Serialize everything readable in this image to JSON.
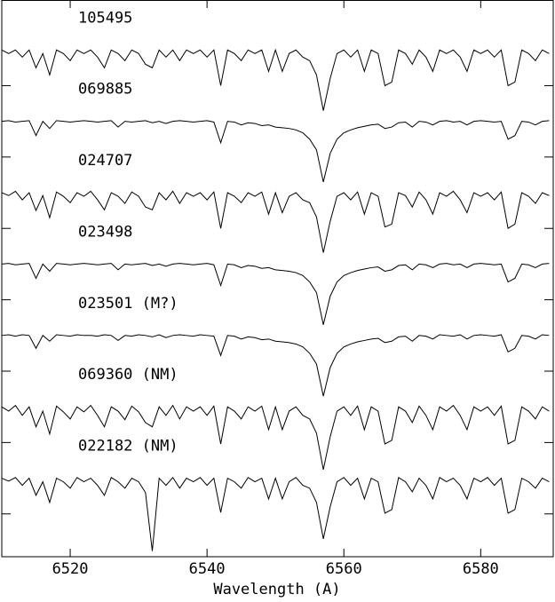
{
  "chart_data": {
    "type": "line",
    "x_label": "Wavelength (A)",
    "x": [
      6510,
      6511,
      6512,
      6513,
      6514,
      6515,
      6516,
      6517,
      6518,
      6519,
      6520,
      6521,
      6522,
      6523,
      6524,
      6525,
      6526,
      6527,
      6528,
      6529,
      6530,
      6531,
      6532,
      6533,
      6534,
      6535,
      6536,
      6537,
      6538,
      6539,
      6540,
      6541,
      6542,
      6543,
      6544,
      6545,
      6546,
      6547,
      6548,
      6549,
      6550,
      6551,
      6552,
      6553,
      6554,
      6555,
      6556,
      6557,
      6558,
      6559,
      6560,
      6561,
      6562,
      6563,
      6564,
      6565,
      6566,
      6567,
      6568,
      6569,
      6570,
      6571,
      6572,
      6573,
      6574,
      6575,
      6576,
      6577,
      6578,
      6579,
      6580,
      6581,
      6582,
      6583,
      6584,
      6585,
      6586,
      6587,
      6588,
      6589,
      6590
    ],
    "xlim": [
      6510,
      6590.6
    ],
    "xticks": [
      6520,
      6540,
      6560,
      6580
    ],
    "ylim": [
      -0.1,
      7.7
    ],
    "yticks": [
      0.5,
      1.5,
      2.5,
      3.5,
      4.5,
      5.5,
      6.5
    ],
    "series": [
      {
        "name": "105495",
        "color": "#000000",
        "values": [
          7,
          6.95,
          7,
          6.9,
          7,
          6.75,
          6.95,
          6.65,
          7,
          6.95,
          6.85,
          7,
          6.95,
          7,
          6.9,
          6.75,
          7,
          6.95,
          6.85,
          7,
          6.95,
          6.8,
          6.75,
          7,
          6.9,
          7,
          6.85,
          7,
          6.95,
          7,
          6.9,
          7,
          6.5,
          7,
          6.95,
          6.85,
          7,
          6.95,
          7,
          6.7,
          7,
          6.7,
          6.95,
          7,
          6.9,
          6.85,
          6.65,
          6.15,
          6.6,
          6.95,
          7,
          6.9,
          7,
          6.7,
          7,
          6.95,
          6.5,
          6.55,
          7,
          6.95,
          6.8,
          7,
          6.9,
          6.7,
          7,
          6.95,
          7,
          6.9,
          6.7,
          7,
          6.95,
          7,
          6.9,
          7,
          6.5,
          6.55,
          7,
          6.95,
          6.85,
          7,
          6.95
        ]
      },
      {
        "name": "069885",
        "color": "#000000",
        "values": [
          6,
          6.01,
          5.99,
          6,
          6.01,
          5.8,
          6,
          5.9,
          6.01,
          6,
          5.99,
          6,
          6.01,
          6,
          5.99,
          6,
          6.01,
          5.92,
          6,
          5.99,
          6,
          6.01,
          5.98,
          6,
          5.97,
          6,
          6.01,
          6,
          5.99,
          6,
          6.01,
          5.99,
          5.7,
          6,
          5.99,
          5.95,
          5.98,
          5.97,
          5.94,
          5.95,
          5.92,
          5.91,
          5.9,
          5.88,
          5.84,
          5.75,
          5.6,
          5.15,
          5.55,
          5.75,
          5.84,
          5.88,
          5.91,
          5.93,
          5.95,
          5.96,
          5.9,
          5.92,
          5.98,
          5.99,
          5.92,
          6,
          5.99,
          5.95,
          6,
          6.01,
          5.99,
          6,
          5.95,
          6,
          6.01,
          6,
          5.99,
          6,
          5.75,
          5.8,
          6,
          5.99,
          5.95,
          6,
          6.01
        ]
      },
      {
        "name": "024707",
        "color": "#000000",
        "values": [
          5,
          4.96,
          5.02,
          4.9,
          5,
          4.75,
          4.96,
          4.65,
          5.01,
          4.95,
          4.86,
          5,
          4.95,
          5.02,
          4.9,
          4.76,
          5,
          4.95,
          4.85,
          5.01,
          4.95,
          4.8,
          4.76,
          5,
          4.9,
          5.02,
          4.85,
          5,
          4.95,
          5,
          4.9,
          5.01,
          4.5,
          5,
          4.95,
          4.86,
          5,
          4.95,
          5.01,
          4.7,
          5,
          4.72,
          4.95,
          5,
          4.9,
          4.86,
          4.66,
          4.16,
          4.6,
          4.95,
          5,
          4.9,
          5.01,
          4.7,
          5,
          4.95,
          4.52,
          4.56,
          5,
          4.96,
          4.8,
          5.01,
          4.9,
          4.7,
          5,
          4.95,
          5.02,
          4.9,
          4.72,
          5,
          4.95,
          5,
          4.9,
          5.01,
          4.5,
          4.56,
          5,
          4.95,
          4.85,
          5,
          4.96
        ]
      },
      {
        "name": "023498",
        "color": "#000000",
        "values": [
          4,
          4.01,
          3.99,
          4,
          4.01,
          3.8,
          4,
          3.9,
          4.01,
          4,
          3.99,
          4,
          4.01,
          4,
          3.99,
          4,
          4.01,
          3.92,
          4,
          3.99,
          4,
          4.01,
          3.98,
          4,
          3.97,
          4,
          4.01,
          4,
          3.99,
          4,
          4.01,
          3.99,
          3.7,
          4,
          3.99,
          3.95,
          3.98,
          3.97,
          3.94,
          3.95,
          3.92,
          3.91,
          3.9,
          3.88,
          3.84,
          3.75,
          3.6,
          3.15,
          3.55,
          3.75,
          3.84,
          3.88,
          3.91,
          3.93,
          3.95,
          3.96,
          3.9,
          3.92,
          3.98,
          3.99,
          3.92,
          4,
          3.99,
          3.95,
          4,
          4.01,
          3.99,
          4,
          3.95,
          4,
          4.01,
          4,
          3.99,
          4,
          3.75,
          3.8,
          4,
          3.99,
          3.95,
          4,
          4.01
        ]
      },
      {
        "name": "023501 (M?)",
        "color": "#000000",
        "values": [
          3,
          3.01,
          2.99,
          3.01,
          3,
          2.82,
          3,
          2.92,
          3.01,
          3,
          2.99,
          3.01,
          3,
          3,
          2.99,
          3.01,
          3,
          2.93,
          3,
          2.99,
          3.01,
          3,
          2.98,
          3.01,
          2.97,
          3,
          3.01,
          3,
          2.99,
          3.01,
          3,
          2.99,
          2.72,
          3,
          2.99,
          2.95,
          2.98,
          2.97,
          2.94,
          2.95,
          2.92,
          2.91,
          2.9,
          2.88,
          2.84,
          2.75,
          2.6,
          2.15,
          2.55,
          2.75,
          2.84,
          2.88,
          2.91,
          2.93,
          2.95,
          2.96,
          2.9,
          2.92,
          2.98,
          2.99,
          2.92,
          3,
          2.99,
          2.95,
          3.01,
          3,
          2.99,
          3.01,
          2.95,
          3,
          3.01,
          3,
          2.99,
          3.01,
          2.77,
          2.82,
          3,
          2.99,
          2.95,
          3.01,
          3
        ]
      },
      {
        "name": "069360 (NM)",
        "color": "#000000",
        "values": [
          2,
          1.94,
          2.02,
          1.88,
          2,
          1.72,
          1.94,
          1.62,
          2.01,
          1.93,
          1.83,
          2,
          1.93,
          2.02,
          1.88,
          1.72,
          2,
          1.94,
          1.82,
          2.01,
          1.93,
          1.78,
          1.72,
          2,
          1.88,
          2.02,
          1.83,
          2,
          1.94,
          2,
          1.88,
          2.01,
          1.48,
          2,
          1.94,
          1.83,
          2,
          1.94,
          2.01,
          1.68,
          2,
          1.68,
          1.94,
          2,
          1.88,
          1.83,
          1.63,
          1.12,
          1.58,
          1.94,
          2,
          1.88,
          2.01,
          1.68,
          2,
          1.94,
          1.48,
          1.53,
          2,
          1.94,
          1.78,
          2.01,
          1.88,
          1.68,
          2,
          1.94,
          2.02,
          1.88,
          1.68,
          2,
          1.94,
          2,
          1.88,
          2.01,
          1.48,
          1.53,
          2,
          1.94,
          1.83,
          2,
          1.94
        ]
      },
      {
        "name": "022182 (NM)",
        "color": "#000000",
        "values": [
          1,
          0.96,
          1.01,
          0.9,
          1,
          0.76,
          0.95,
          0.66,
          1,
          0.95,
          0.86,
          1.01,
          0.95,
          1,
          0.9,
          0.76,
          1.01,
          0.95,
          0.86,
          1,
          0.95,
          0.8,
          -0.02,
          1,
          0.9,
          1.01,
          0.86,
          1,
          0.95,
          1.01,
          0.9,
          1,
          0.52,
          1,
          0.95,
          0.86,
          1.01,
          0.95,
          1,
          0.71,
          1,
          0.71,
          0.95,
          1.01,
          0.9,
          0.86,
          0.66,
          0.15,
          0.6,
          0.95,
          1.01,
          0.9,
          1,
          0.71,
          1,
          0.95,
          0.51,
          0.56,
          1.01,
          0.95,
          0.81,
          1,
          0.9,
          0.71,
          1.01,
          0.95,
          1,
          0.9,
          0.71,
          1,
          0.95,
          1.01,
          0.9,
          1,
          0.51,
          0.56,
          1,
          0.95,
          0.86,
          1,
          0.95
        ]
      }
    ]
  }
}
